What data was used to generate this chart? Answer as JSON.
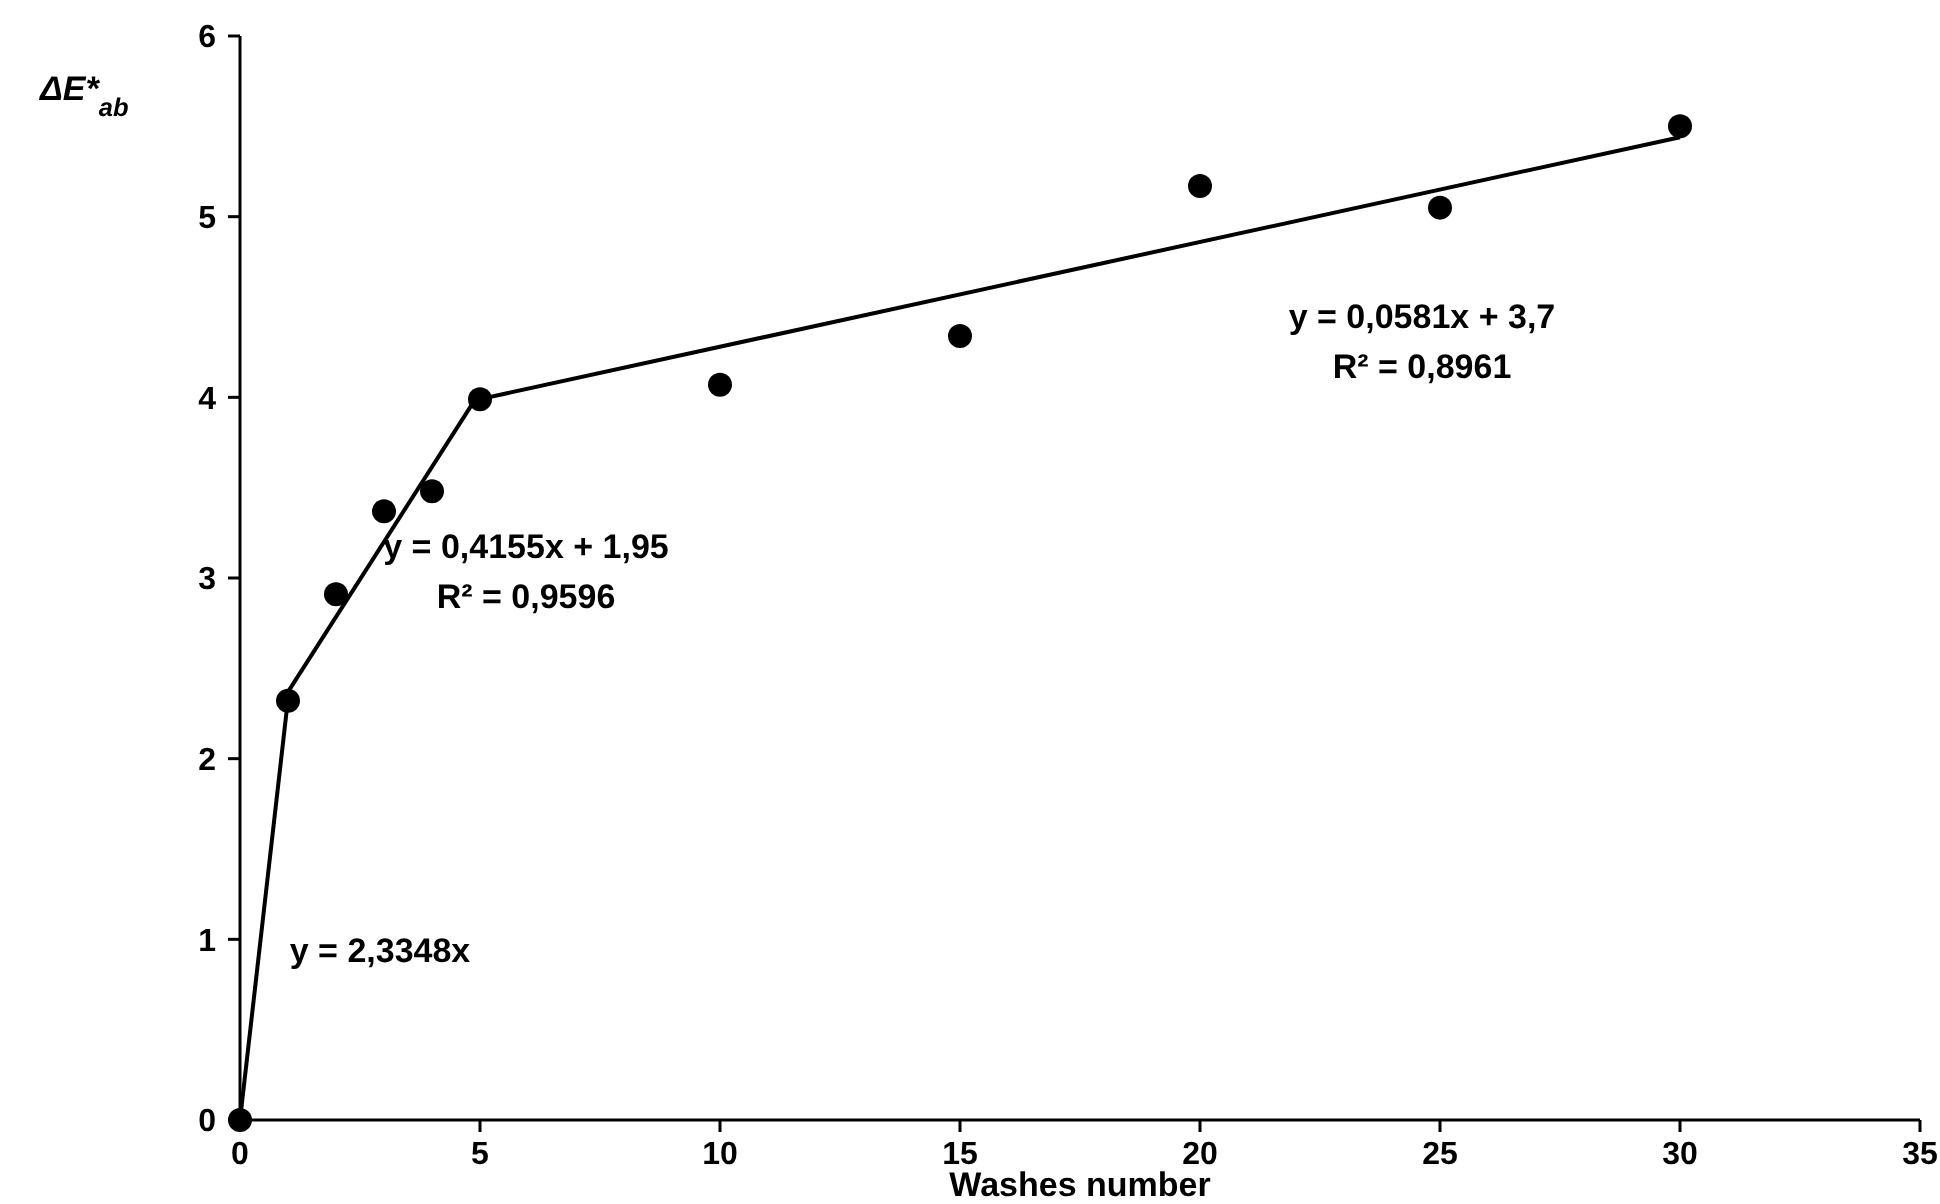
{
  "chart_data": {
    "type": "scatter",
    "xlabel": "Washes number",
    "ylabel": "ΔE*$_{ab}$",
    "x": [
      0,
      1,
      2,
      3,
      4,
      5,
      10,
      15,
      20,
      25,
      30
    ],
    "series": [
      {
        "color": "#000000",
        "marker": "circle",
        "values": [
          0,
          2.32,
          2.91,
          3.37,
          3.48,
          3.99,
          4.07,
          4.34,
          5.17,
          5.05,
          5.5
        ]
      },
      {
        "type": "line",
        "color": "#000000",
        "marker": "none",
        "x": [
          0,
          1
        ],
        "values": [
          0,
          2.33
        ]
      },
      {
        "type": "line",
        "color": "#000000",
        "marker": "none",
        "x": [
          1,
          5
        ],
        "values": [
          2.37,
          4.03
        ]
      },
      {
        "type": "line",
        "color": "#000000",
        "marker": "none",
        "x": [
          5,
          30
        ],
        "values": [
          3.99,
          5.44
        ]
      }
    ],
    "xlim": [
      0,
      35
    ],
    "xticks": [
      0,
      5,
      10,
      15,
      20,
      25,
      30,
      35
    ],
    "ylim": [
      0,
      6
    ],
    "yticks": [
      0,
      1,
      2,
      3,
      4,
      5,
      6
    ],
    "grid": false,
    "line_style": "solid",
    "annotations": [
      "y = 2,3348x",
      "y = 0,4155x + 1,95",
      "R² = 0,9596",
      "y = 0,0581x + 3,7",
      "R² = 0,8961"
    ]
  }
}
